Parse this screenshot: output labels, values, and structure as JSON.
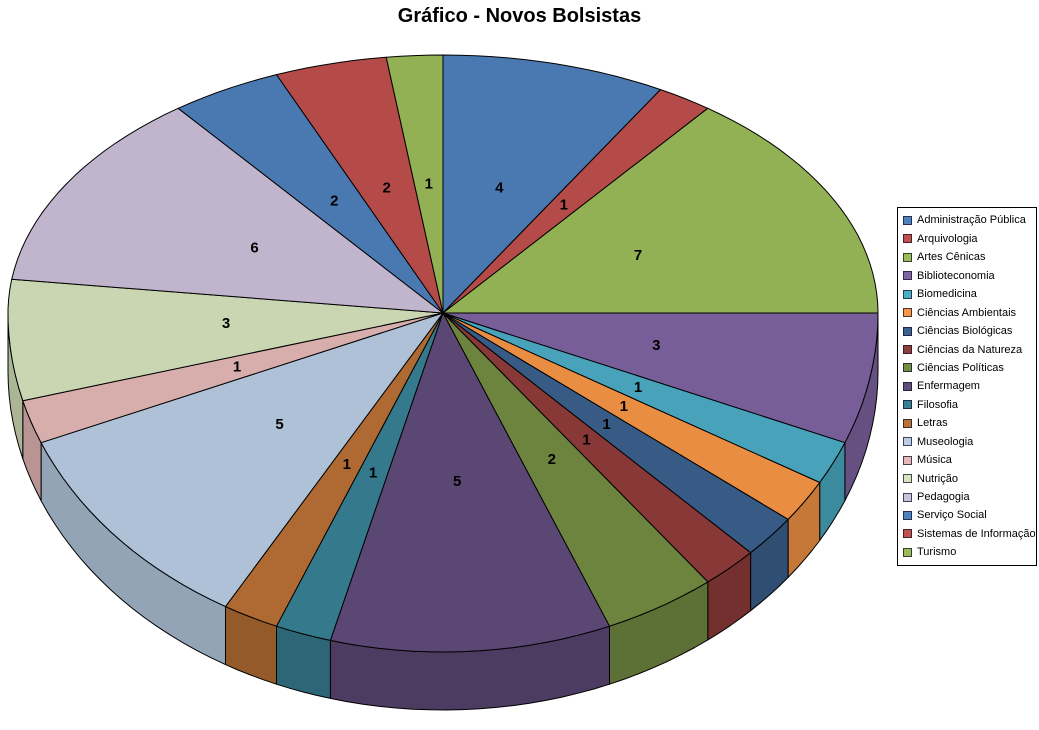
{
  "title": "Gráfico - Novos Bolsistas",
  "chart_data": {
    "type": "pie",
    "style": "3d-pie",
    "title": "Gráfico - Novos Bolsistas",
    "legend_position": "right",
    "total": 48,
    "start_angle_deg": 0,
    "direction": "clockwise",
    "data_labels": "value",
    "categories": [
      "Administração Pública",
      "Arquivologia",
      "Artes Cênicas",
      "Biblioteconomia",
      "Biomedicina",
      "Ciências Ambientais",
      "Ciências Biológicas",
      "Ciências da Natureza",
      "Ciências Políticas",
      "Enfermagem",
      "Filosofia",
      "Letras",
      "Museologia",
      "Música",
      "Nutrição",
      "Pedagogia",
      "Serviço Social",
      "Sistemas de Informação",
      "Turismo"
    ],
    "values": [
      4,
      1,
      7,
      3,
      1,
      1,
      1,
      1,
      2,
      5,
      1,
      1,
      5,
      1,
      3,
      6,
      2,
      2,
      1
    ],
    "colors": [
      "#4F81BD",
      "#C0504D",
      "#9BBB59",
      "#8064A2",
      "#4BACC6",
      "#F79646",
      "#3B618E",
      "#903C3A",
      "#748C43",
      "#604B7A",
      "#388195",
      "#B97135",
      "#B9CDE5",
      "#E6B9B8",
      "#D7E4BD",
      "#CCC1DA",
      "#4F81BD",
      "#C0504D",
      "#9BBB59"
    ],
    "outline_color": "#000000",
    "background_color": "#FFFFFF",
    "legend_border_color": "#000000"
  }
}
